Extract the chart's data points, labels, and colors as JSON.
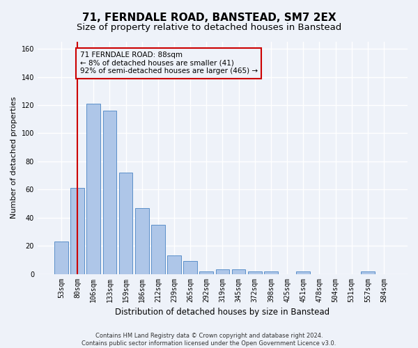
{
  "title": "71, FERNDALE ROAD, BANSTEAD, SM7 2EX",
  "subtitle": "Size of property relative to detached houses in Banstead",
  "xlabel": "Distribution of detached houses by size in Banstead",
  "ylabel": "Number of detached properties",
  "bar_labels": [
    "53sqm",
    "80sqm",
    "106sqm",
    "133sqm",
    "159sqm",
    "186sqm",
    "212sqm",
    "239sqm",
    "265sqm",
    "292sqm",
    "319sqm",
    "345sqm",
    "372sqm",
    "398sqm",
    "425sqm",
    "451sqm",
    "478sqm",
    "504sqm",
    "531sqm",
    "557sqm",
    "584sqm"
  ],
  "bar_values": [
    23,
    61,
    121,
    116,
    72,
    47,
    35,
    13,
    9,
    2,
    3,
    3,
    2,
    2,
    0,
    2,
    0,
    0,
    0,
    2,
    0
  ],
  "bar_color": "#aec6e8",
  "bar_edge_color": "#5b8fc9",
  "ylim": [
    0,
    165
  ],
  "yticks": [
    0,
    20,
    40,
    60,
    80,
    100,
    120,
    140,
    160
  ],
  "vline_x": 1,
  "vline_color": "#cc0000",
  "annotation_text": "71 FERNDALE ROAD: 88sqm\n← 8% of detached houses are smaller (41)\n92% of semi-detached houses are larger (465) →",
  "annotation_box_color": "#cc0000",
  "footer_line1": "Contains HM Land Registry data © Crown copyright and database right 2024.",
  "footer_line2": "Contains public sector information licensed under the Open Government Licence v3.0.",
  "background_color": "#eef2f9",
  "grid_color": "#ffffff",
  "title_fontsize": 11,
  "subtitle_fontsize": 9.5,
  "xlabel_fontsize": 8.5,
  "ylabel_fontsize": 8,
  "tick_fontsize": 7,
  "footer_fontsize": 6
}
